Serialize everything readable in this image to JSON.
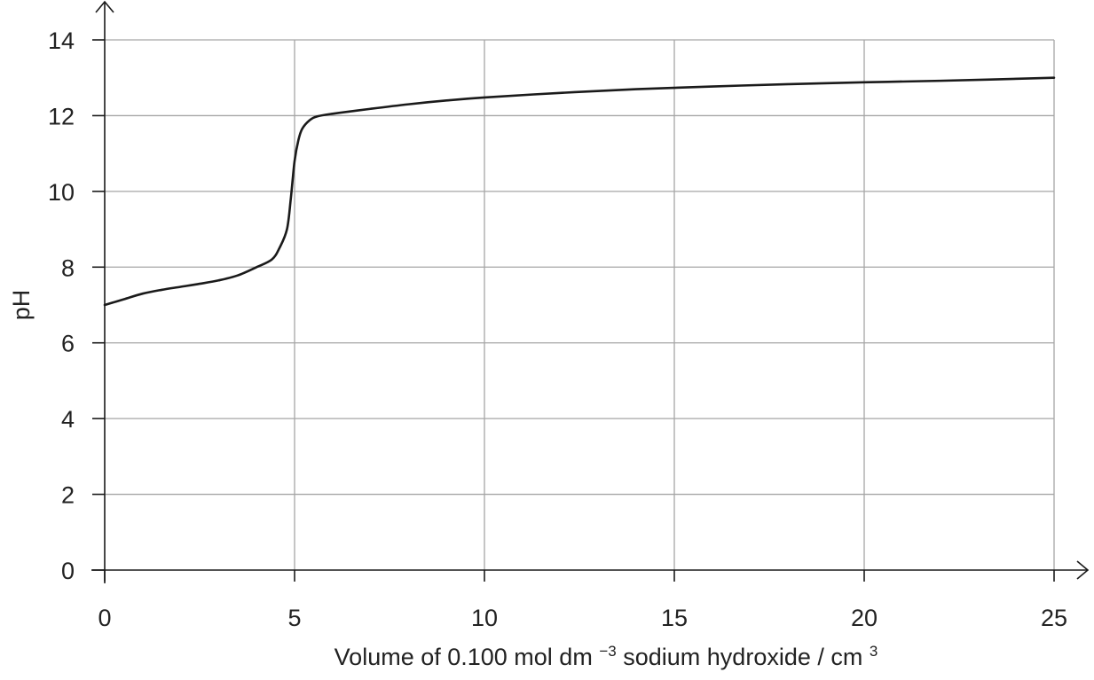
{
  "chart_data": {
    "type": "line",
    "title": "",
    "xlabel": {
      "prefix": "Volume of 0.100 mol dm",
      "prefix_sup": "−3",
      "suffix": " sodium hydroxide / cm",
      "suffix_sup": "3"
    },
    "ylabel": "pH",
    "xlim": [
      0,
      25
    ],
    "ylim": [
      0,
      14
    ],
    "x_ticks": [
      0,
      5,
      10,
      15,
      20,
      25
    ],
    "y_ticks": [
      0,
      2,
      4,
      6,
      8,
      10,
      12,
      14
    ],
    "x_tick_labels": [
      "0",
      "5",
      "10",
      "15",
      "20",
      "25"
    ],
    "y_tick_labels": [
      "0",
      "2",
      "4",
      "6",
      "8",
      "10",
      "12",
      "14"
    ],
    "grid": true,
    "colors": {
      "curve": "#1a1a1a",
      "grid": "#a6a6a6",
      "axis": "#1a1a1a"
    },
    "series": [
      {
        "x": [
          0,
          0.5,
          1,
          1.5,
          2,
          2.5,
          3,
          3.5,
          4,
          4.4,
          4.6,
          4.8,
          4.9,
          5.0,
          5.1,
          5.2,
          5.4,
          5.6,
          6,
          7,
          8,
          9,
          10,
          12,
          14,
          16,
          18,
          20,
          22,
          25
        ],
        "y": [
          7.0,
          7.15,
          7.3,
          7.4,
          7.48,
          7.56,
          7.65,
          7.78,
          8.0,
          8.2,
          8.5,
          9.0,
          9.8,
          10.8,
          11.35,
          11.65,
          11.88,
          11.98,
          12.05,
          12.18,
          12.3,
          12.4,
          12.48,
          12.6,
          12.7,
          12.77,
          12.83,
          12.88,
          12.92,
          13.0
        ]
      }
    ]
  }
}
